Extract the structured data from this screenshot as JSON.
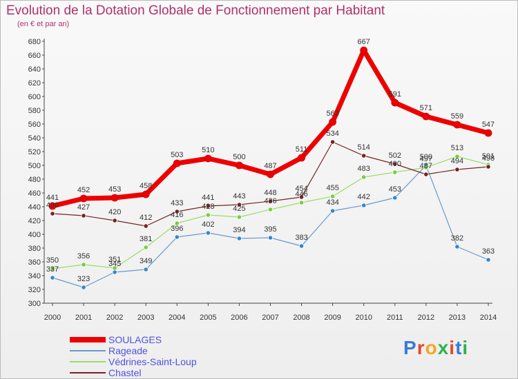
{
  "title": "Evolution de la Dotation Globale de Fonctionnement par Habitant",
  "subtitle": "(en € et par an)",
  "logo": {
    "text": "Proxiti",
    "colors": [
      "#3a7bd5",
      "#e8452c",
      "#f5a623",
      "#2db24a",
      "#e8452c",
      "#3a7bd5",
      "#2db24a"
    ]
  },
  "chart_data": {
    "type": "line",
    "title": "Evolution de la Dotation Globale de Fonctionnement par Habitant",
    "subtitle": "(en € et par an)",
    "x": [
      "2000",
      "2001",
      "2002",
      "2003",
      "2004",
      "2005",
      "2006",
      "2007",
      "2008",
      "2009",
      "2010",
      "2011",
      "2012",
      "2013",
      "2014"
    ],
    "ylim": [
      300,
      680
    ],
    "ytick_step": 20,
    "grid": false,
    "legend_position": "bottom-left",
    "series": [
      {
        "name": "SOULAGES",
        "color": "#ee0000",
        "width": 7,
        "marker": "#ee0000",
        "values": [
          441,
          452,
          453,
          458,
          503,
          510,
          500,
          487,
          511,
          563,
          667,
          591,
          571,
          559,
          547
        ]
      },
      {
        "name": "Rageade",
        "color": "#6699cc",
        "width": 1.2,
        "marker": "#3388cc",
        "values": [
          337,
          323,
          345,
          349,
          396,
          402,
          394,
          395,
          383,
          434,
          442,
          453,
          500,
          382,
          363
        ]
      },
      {
        "name": "Védrines-Saint-Loup",
        "color": "#99dd66",
        "width": 1.2,
        "marker": "#77cc44",
        "values": [
          350,
          356,
          351,
          381,
          416,
          428,
          425,
          436,
          446,
          455,
          483,
          490,
          497,
          513,
          501
        ]
      },
      {
        "name": "Chastel",
        "color": "#772222",
        "width": 1.2,
        "marker": "#772222",
        "values": [
          430,
          427,
          420,
          412,
          433,
          441,
          443,
          448,
          454,
          534,
          514,
          502,
          487,
          494,
          498
        ]
      }
    ]
  }
}
